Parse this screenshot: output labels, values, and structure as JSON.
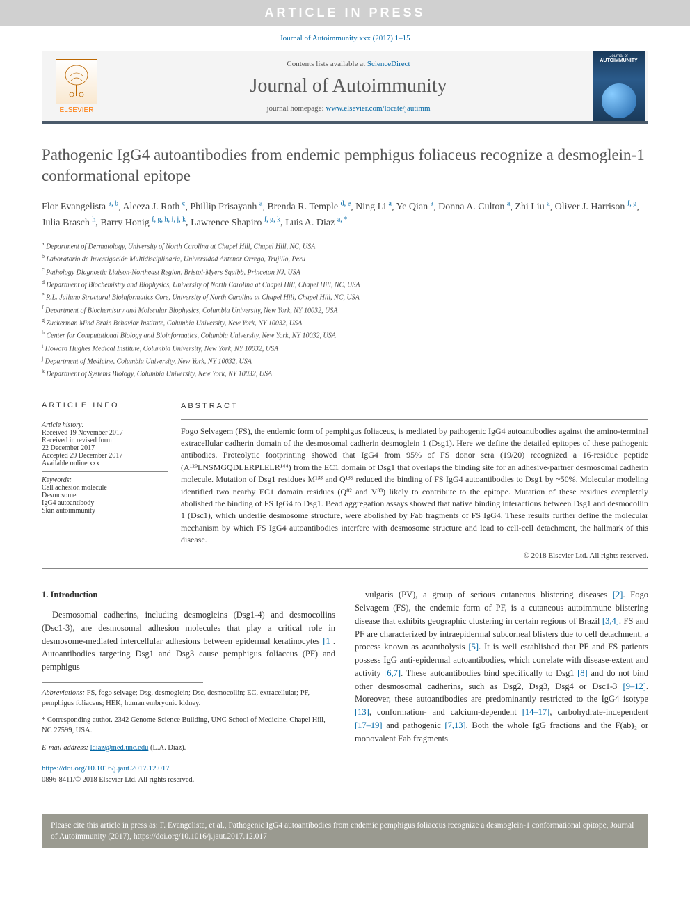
{
  "banner": {
    "text": "ARTICLE IN PRESS"
  },
  "citation_top": "Journal of Autoimmunity xxx (2017) 1–15",
  "header": {
    "contents_prefix": "Contents lists available at ",
    "contents_link": "ScienceDirect",
    "journal_name": "Journal of Autoimmunity",
    "homepage_prefix": "journal homepage: ",
    "homepage_url": "www.elsevier.com/locate/jautimm",
    "elsevier": "ELSEVIER",
    "cover_label": "AUTOIMMUNITY",
    "cover_sub": "Journal of"
  },
  "title": "Pathogenic IgG4 autoantibodies from endemic pemphigus foliaceus recognize a desmoglein-1 conformational epitope",
  "authors": [
    {
      "name": "Flor Evangelista",
      "aff": "a, b"
    },
    {
      "name": "Aleeza J. Roth",
      "aff": "c"
    },
    {
      "name": "Phillip Prisayanh",
      "aff": "a"
    },
    {
      "name": "Brenda R. Temple",
      "aff": "d, e"
    },
    {
      "name": "Ning Li",
      "aff": "a"
    },
    {
      "name": "Ye Qian",
      "aff": "a"
    },
    {
      "name": "Donna A. Culton",
      "aff": "a"
    },
    {
      "name": "Zhi Liu",
      "aff": "a"
    },
    {
      "name": "Oliver J. Harrison",
      "aff": "f, g"
    },
    {
      "name": "Julia Brasch",
      "aff": "h"
    },
    {
      "name": "Barry Honig",
      "aff": "f, g, h, i, j, k"
    },
    {
      "name": "Lawrence Shapiro",
      "aff": "f, g, k"
    },
    {
      "name": "Luis A. Diaz",
      "aff": "a, *"
    }
  ],
  "affiliations": [
    {
      "sup": "a",
      "text": "Department of Dermatology, University of North Carolina at Chapel Hill, Chapel Hill, NC, USA"
    },
    {
      "sup": "b",
      "text": "Laboratorio de Investigación Multidisciplinaria, Universidad Antenor Orrego, Trujillo, Peru"
    },
    {
      "sup": "c",
      "text": "Pathology Diagnostic Liaison-Northeast Region, Bristol-Myers Squibb, Princeton NJ, USA"
    },
    {
      "sup": "d",
      "text": "Department of Biochemistry and Biophysics, University of North Carolina at Chapel Hill, Chapel Hill, NC, USA"
    },
    {
      "sup": "e",
      "text": "R.L. Juliano Structural Bioinformatics Core, University of North Carolina at Chapel Hill, Chapel Hill, NC, USA"
    },
    {
      "sup": "f",
      "text": "Department of Biochemistry and Molecular Biophysics, Columbia University, New York, NY 10032, USA"
    },
    {
      "sup": "g",
      "text": "Zuckerman Mind Brain Behavior Institute, Columbia University, New York, NY 10032, USA"
    },
    {
      "sup": "h",
      "text": "Center for Computational Biology and Bioinformatics, Columbia University, New York, NY 10032, USA"
    },
    {
      "sup": "i",
      "text": "Howard Hughes Medical Institute, Columbia University, New York, NY 10032, USA"
    },
    {
      "sup": "j",
      "text": "Department of Medicine, Columbia University, New York, NY 10032, USA"
    },
    {
      "sup": "k",
      "text": "Department of Systems Biology, Columbia University, New York, NY 10032, USA"
    }
  ],
  "article_info": {
    "heading": "ARTICLE INFO",
    "history_label": "Article history:",
    "history": [
      "Received 19 November 2017",
      "Received in revised form",
      "22 December 2017",
      "Accepted 29 December 2017",
      "Available online xxx"
    ],
    "keywords_label": "Keywords:",
    "keywords": [
      "Cell adhesion molecule",
      "Desmosome",
      "IgG4 autoantibody",
      "Skin autoimmunity"
    ]
  },
  "abstract": {
    "heading": "ABSTRACT",
    "text": "Fogo Selvagem (FS), the endemic form of pemphigus foliaceus, is mediated by pathogenic IgG4 autoantibodies against the amino-terminal extracellular cadherin domain of the desmosomal cadherin desmoglein 1 (Dsg1). Here we define the detailed epitopes of these pathogenic antibodies. Proteolytic footprinting showed that IgG4 from 95% of FS donor sera (19/20) recognized a 16-residue peptide (A¹²⁹LNSMGQDLERPLELR¹⁴⁴) from the EC1 domain of Dsg1 that overlaps the binding site for an adhesive-partner desmosomal cadherin molecule. Mutation of Dsg1 residues M¹³³ and Q¹³⁵ reduced the binding of FS IgG4 autoantibodies to Dsg1 by ~50%. Molecular modeling identified two nearby EC1 domain residues (Q⁸² and V⁸³) likely to contribute to the epitope. Mutation of these residues completely abolished the binding of FS IgG4 to Dsg1. Bead aggregation assays showed that native binding interactions between Dsg1 and desmocollin 1 (Dsc1), which underlie desmosome structure, were abolished by Fab fragments of FS IgG4. These results further define the molecular mechanism by which FS IgG4 autoantibodies interfere with desmosome structure and lead to cell-cell detachment, the hallmark of this disease.",
    "copyright": "© 2018 Elsevier Ltd. All rights reserved."
  },
  "intro": {
    "heading": "1. Introduction",
    "p1_pre": "Desmosomal cadherins, including desmogleins (Dsg1-4) and desmocollins (Dsc1-3), are desmosomal adhesion molecules that play a critical role in desmosome-mediated intercellular adhesions between epidermal keratinocytes ",
    "p1_ref1": "[1]",
    "p1_post": ". Autoantibodies targeting Dsg1 and Dsg3 cause pemphigus foliaceus (PF) and pemphigus",
    "p2_a": "vulgaris (PV), a group of serious cutaneous blistering diseases ",
    "r2": "[2]",
    "p2_b": ". Fogo Selvagem (FS), the endemic form of PF, is a cutaneous autoimmune blistering disease that exhibits geographic clustering in certain regions of Brazil ",
    "r34": "[3,4]",
    "p2_c": ". FS and PF are characterized by intraepidermal subcorneal blisters due to cell detachment, a process known as acantholysis ",
    "r5": "[5]",
    "p2_d": ". It is well established that PF and FS patients possess IgG anti-epidermal autoantibodies, which correlate with disease-extent and activity ",
    "r67": "[6,7]",
    "p2_e": ". These autoantibodies bind specifically to Dsg1 ",
    "r8": "[8]",
    "p2_f": " and do not bind other desmosomal cadherins, such as Dsg2, Dsg3, Dsg4 or Dsc1-3 ",
    "r912": "[9–12]",
    "p2_g": ". Moreover, these autoantibodies are predominantly restricted to the IgG4 isotype ",
    "r13": "[13]",
    "p2_h": ", conformation- and calcium-dependent ",
    "r1417": "[14–17]",
    "p2_i": ", carbohydrate-independent ",
    "r1719": "[17–19]",
    "p2_j": " and pathogenic ",
    "r713": "[7,13]",
    "p2_k": ". Both the whole IgG fractions and the F(ab)₂ or monovalent Fab fragments"
  },
  "footnotes": {
    "abbrev_label": "Abbreviations:",
    "abbrev_text": " FS, fogo selvage; Dsg, desmoglein; Dsc, desmocollin; EC, extracellular; PF, pemphigus foliaceus; HEK, human embryonic kidney.",
    "corr_label": "* Corresponding author. 2342 Genome Science Building, UNC School of Medicine, Chapel Hill, NC 27599, USA.",
    "email_label": "E-mail address: ",
    "email": "ldiaz@med.unc.edu",
    "email_who": " (L.A. Diaz)."
  },
  "doi": "https://doi.org/10.1016/j.jaut.2017.12.017",
  "issn_line": "0896-8411/© 2018 Elsevier Ltd. All rights reserved.",
  "cite_box": "Please cite this article in press as: F. Evangelista, et al., Pathogenic IgG4 autoantibodies from endemic pemphigus foliaceus recognize a desmoglein-1 conformational epitope, Journal of Autoimmunity (2017), https://doi.org/10.1016/j.jaut.2017.12.017",
  "colors": {
    "link": "#0066a4",
    "banner_bg": "#d0d0d0",
    "header_border": "#4a5a6a",
    "citebox_bg": "#9a9a90"
  }
}
